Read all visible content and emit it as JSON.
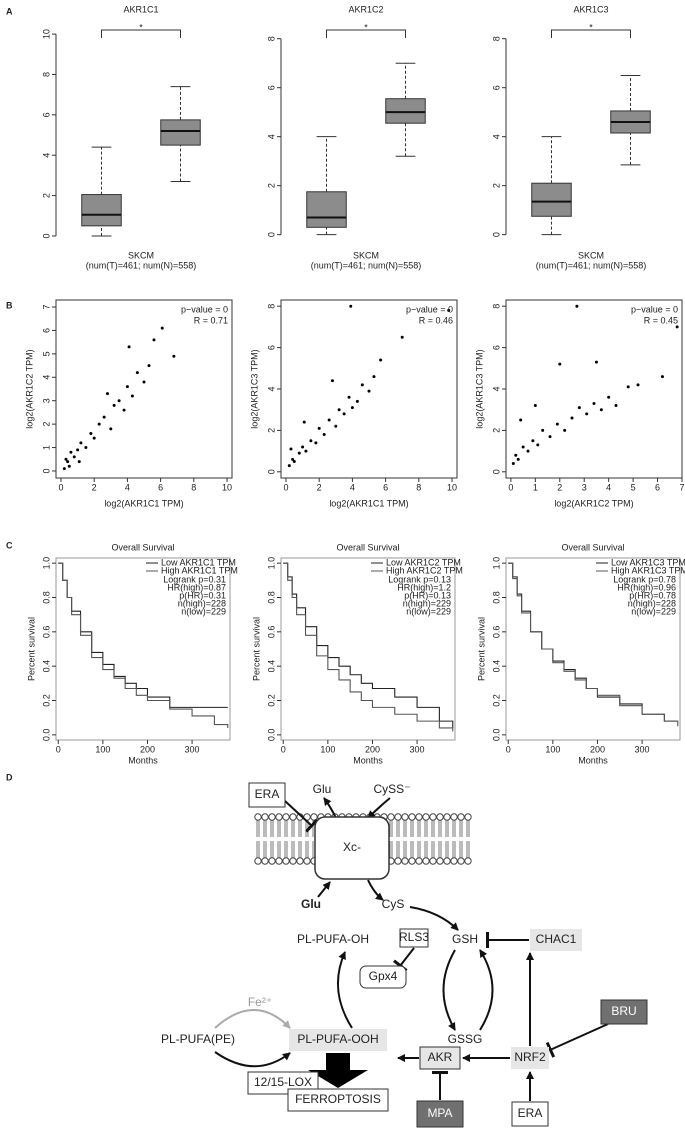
{
  "panel_labels": [
    "A",
    "B",
    "C",
    "D"
  ],
  "chart_data": [
    {
      "type": "box",
      "title": "AKR1C1",
      "xlabel": "SKCM",
      "xsublabel": "(num(T)=461; num(N)=558)",
      "significance": "*",
      "ylim": [
        -0.3,
        10.5
      ],
      "yticks": [
        0,
        2,
        4,
        6,
        8,
        10
      ],
      "color": "#8c8c8c",
      "boxes": [
        {
          "whislo": 0,
          "q1": 0.5,
          "med": 1.05,
          "q3": 2.05,
          "whishi": 4.4
        },
        {
          "whislo": 2.7,
          "q1": 4.5,
          "med": 5.2,
          "q3": 5.75,
          "whishi": 7.4
        }
      ]
    },
    {
      "type": "box",
      "title": "AKR1C2",
      "xlabel": "SKCM",
      "xsublabel": "(num(T)=461; num(N)=558)",
      "significance": "*",
      "ylim": [
        -0.3,
        8.6
      ],
      "yticks": [
        0,
        2,
        4,
        6,
        8
      ],
      "color": "#8c8c8c",
      "boxes": [
        {
          "whislo": 0,
          "q1": 0.3,
          "med": 0.7,
          "q3": 1.75,
          "whishi": 4.0
        },
        {
          "whislo": 3.2,
          "q1": 4.55,
          "med": 5.0,
          "q3": 5.55,
          "whishi": 7.0
        }
      ]
    },
    {
      "type": "box",
      "title": "AKR1C3",
      "xlabel": "SKCM",
      "xsublabel": "(num(T)=461; num(N)=558)",
      "significance": "*",
      "ylim": [
        -0.3,
        8.6
      ],
      "yticks": [
        0,
        2,
        4,
        6,
        8
      ],
      "color": "#8c8c8c",
      "boxes": [
        {
          "whislo": 0,
          "q1": 0.75,
          "med": 1.35,
          "q3": 2.1,
          "whishi": 4.0
        },
        {
          "whislo": 2.85,
          "q1": 4.15,
          "med": 4.6,
          "q3": 5.05,
          "whishi": 6.5
        }
      ]
    },
    {
      "type": "scatter",
      "xlabel": "log2(AKR1C1 TPM)",
      "ylabel": "log2(AKR1C2 TPM)",
      "annotations": [
        "p−value = 0",
        "R = 0.71"
      ],
      "color": "#000000",
      "xlim": [
        -0.3,
        10.3
      ],
      "xticks": [
        0,
        2,
        4,
        6,
        8,
        10
      ],
      "ylim": [
        -0.3,
        7.3
      ],
      "yticks": [
        0,
        1,
        2,
        3,
        4,
        5,
        6,
        7
      ],
      "x": [
        0.2,
        0.4,
        0.5,
        0.8,
        1.0,
        1.2,
        1.5,
        1.8,
        2.0,
        2.3,
        2.6,
        3.0,
        3.2,
        3.5,
        3.8,
        4.0,
        4.3,
        4.6,
        5.0,
        5.3,
        5.6,
        6.1,
        0.3,
        0.6,
        1.1,
        2.8,
        4.1,
        6.8
      ],
      "values": [
        0.1,
        0.4,
        0.2,
        0.6,
        0.9,
        1.2,
        1.0,
        1.6,
        1.4,
        2.0,
        2.3,
        1.8,
        2.8,
        3.0,
        2.6,
        3.6,
        3.2,
        4.2,
        3.8,
        4.5,
        5.6,
        6.1,
        0.5,
        0.8,
        0.4,
        3.3,
        5.3,
        4.9
      ]
    },
    {
      "type": "scatter",
      "xlabel": "log2(AKR1C1 TPM)",
      "ylabel": "log2(AKR1C3 TPM)",
      "annotations": [
        "p−value = 0",
        "R = 0.46"
      ],
      "color": "#000000",
      "xlim": [
        -0.3,
        10.3
      ],
      "xticks": [
        0,
        2,
        4,
        6,
        8,
        10
      ],
      "ylim": [
        -0.3,
        8.3
      ],
      "yticks": [
        0,
        2,
        4,
        6,
        8
      ],
      "x": [
        0.2,
        0.4,
        0.5,
        0.8,
        1.0,
        1.2,
        1.5,
        1.8,
        2.0,
        2.3,
        2.6,
        3.0,
        3.2,
        3.5,
        3.8,
        4.0,
        4.3,
        4.6,
        5.0,
        5.3,
        5.7,
        7.0,
        9.8,
        0.3,
        1.1,
        2.8,
        3.9
      ],
      "values": [
        0.3,
        0.6,
        0.5,
        0.9,
        1.2,
        1.0,
        1.5,
        1.4,
        2.1,
        1.8,
        2.5,
        2.2,
        3.0,
        2.8,
        3.6,
        3.1,
        3.4,
        4.2,
        3.9,
        4.6,
        5.4,
        6.5,
        7.8,
        1.1,
        2.4,
        4.4,
        8.0
      ]
    },
    {
      "type": "scatter",
      "xlabel": "log2(AKR1C2 TPM)",
      "ylabel": "log2(AKR1C3 TPM)",
      "annotations": [
        "p−value = 0",
        "R = 0.45"
      ],
      "color": "#000000",
      "xlim": [
        -0.2,
        7.0
      ],
      "xticks": [
        0,
        1,
        2,
        3,
        4,
        5,
        6,
        7
      ],
      "ylim": [
        -0.3,
        8.3
      ],
      "yticks": [
        0,
        2,
        4,
        6,
        8
      ],
      "x": [
        0.1,
        0.2,
        0.3,
        0.5,
        0.7,
        0.9,
        1.1,
        1.3,
        1.6,
        1.9,
        2.2,
        2.5,
        2.8,
        3.1,
        3.4,
        3.7,
        4.0,
        4.3,
        4.8,
        5.2,
        6.2,
        6.8,
        0.4,
        1.0,
        2.0,
        2.7,
        3.5
      ],
      "values": [
        0.4,
        0.8,
        0.6,
        1.2,
        1.0,
        1.5,
        1.3,
        2.0,
        1.7,
        2.3,
        2.0,
        2.6,
        3.1,
        2.8,
        3.3,
        3.0,
        3.6,
        3.2,
        4.1,
        4.2,
        4.6,
        7.0,
        2.5,
        3.2,
        5.2,
        8.0,
        5.3
      ]
    },
    {
      "type": "km",
      "title": "Overall Survival",
      "xlabel": "Months",
      "ylabel": "Percent survival",
      "xlim": [
        -5,
        385
      ],
      "xticks": [
        0,
        100,
        200,
        300
      ],
      "ylim": [
        -0.03,
        1.03
      ],
      "yticks": [
        {
          "value": 0,
          "label": "0.0"
        },
        0.2,
        0.4,
        0.6,
        0.8,
        {
          "value": 1,
          "label": "1.0"
        }
      ],
      "stats": [
        "Logrank p=0.31",
        "HR(high)=0.87",
        "p(HR)=0.31",
        "n(high)=228",
        "n(low)=229"
      ],
      "series": [
        {
          "name": "Low AKR1C1 TPM",
          "color": "#222222",
          "x": [
            0,
            10,
            20,
            30,
            50,
            75,
            100,
            125,
            150,
            175,
            200,
            250,
            300,
            350,
            380
          ],
          "values": [
            1,
            0.9,
            0.8,
            0.72,
            0.6,
            0.48,
            0.41,
            0.34,
            0.3,
            0.27,
            0.22,
            0.16,
            0.16,
            0.16,
            0.16
          ]
        },
        {
          "name": "High AKR1C1 TPM",
          "color": "#555555",
          "x": [
            0,
            10,
            20,
            30,
            50,
            75,
            100,
            125,
            150,
            175,
            200,
            250,
            300,
            350,
            380
          ],
          "values": [
            1,
            0.9,
            0.8,
            0.7,
            0.58,
            0.45,
            0.38,
            0.33,
            0.27,
            0.23,
            0.2,
            0.15,
            0.11,
            0.06,
            0.04
          ]
        }
      ]
    },
    {
      "type": "km",
      "title": "Overall Survival",
      "xlabel": "Months",
      "ylabel": "Percent survival",
      "xlim": [
        -5,
        385
      ],
      "xticks": [
        0,
        100,
        200,
        300
      ],
      "ylim": [
        -0.03,
        1.03
      ],
      "yticks": [
        {
          "value": 0,
          "label": "0.0"
        },
        0.2,
        0.4,
        0.6,
        0.8,
        {
          "value": 1,
          "label": "1.0"
        }
      ],
      "stats": [
        "Logrank p=0.13",
        "HR(high)=1.2",
        "p(HR)=0.13",
        "n(high)=229",
        "n(low)=229"
      ],
      "series": [
        {
          "name": "Low AKR1C2 TPM",
          "color": "#222222",
          "x": [
            0,
            10,
            20,
            30,
            50,
            75,
            100,
            125,
            150,
            175,
            200,
            250,
            300,
            350,
            380
          ],
          "values": [
            1,
            0.92,
            0.82,
            0.74,
            0.63,
            0.52,
            0.45,
            0.4,
            0.35,
            0.3,
            0.27,
            0.22,
            0.16,
            0.08,
            0.04
          ]
        },
        {
          "name": "High AKR1C2 TPM",
          "color": "#555555",
          "x": [
            0,
            10,
            20,
            30,
            50,
            75,
            100,
            125,
            150,
            175,
            200,
            250,
            300,
            350,
            380
          ],
          "values": [
            1,
            0.9,
            0.8,
            0.7,
            0.58,
            0.46,
            0.38,
            0.32,
            0.25,
            0.2,
            0.16,
            0.12,
            0.08,
            0.04,
            0.02
          ]
        }
      ]
    },
    {
      "type": "km",
      "title": "Overall Survival",
      "xlabel": "Months",
      "ylabel": "Percent survival",
      "xlim": [
        -5,
        385
      ],
      "xticks": [
        0,
        100,
        200,
        300
      ],
      "ylim": [
        -0.03,
        1.03
      ],
      "yticks": [
        {
          "value": 0,
          "label": "0.0"
        },
        0.2,
        0.4,
        0.6,
        0.8,
        {
          "value": 1,
          "label": "1.0"
        }
      ],
      "stats": [
        "Logrank p=0.78",
        "HR(high)=0.96",
        "p(HR)=0.78",
        "n(high)=228",
        "n(low)=229"
      ],
      "series": [
        {
          "name": "Low AKR1C3 TPM",
          "color": "#222222",
          "x": [
            0,
            10,
            20,
            30,
            50,
            75,
            100,
            125,
            150,
            175,
            200,
            250,
            300,
            350,
            380
          ],
          "values": [
            1,
            0.92,
            0.82,
            0.72,
            0.6,
            0.5,
            0.43,
            0.38,
            0.33,
            0.27,
            0.22,
            0.18,
            0.12,
            0.08,
            0.08
          ]
        },
        {
          "name": "High AKR1C3 TPM",
          "color": "#555555",
          "x": [
            0,
            10,
            20,
            30,
            50,
            75,
            100,
            125,
            150,
            175,
            200,
            250,
            300,
            350,
            380
          ],
          "values": [
            1,
            0.91,
            0.81,
            0.71,
            0.6,
            0.5,
            0.42,
            0.37,
            0.32,
            0.27,
            0.23,
            0.17,
            0.12,
            0.08,
            0.05
          ]
        }
      ]
    }
  ],
  "diagram": {
    "nodes": [
      {
        "label": "ERA"
      },
      {
        "label": "Glu"
      },
      {
        "label": "CySS⁻"
      },
      {
        "label": "Xc-"
      },
      {
        "label": "Glu"
      },
      {
        "label": "CyS"
      },
      {
        "label": "PL-PUFA-OH"
      },
      {
        "label": "RLS3"
      },
      {
        "label": "GSH"
      },
      {
        "label": "CHAC1"
      },
      {
        "label": "Gpx4"
      },
      {
        "label": "Fe²⁺"
      },
      {
        "label": "BRU"
      },
      {
        "label": "PL-PUFA(PE)"
      },
      {
        "label": "PL-PUFA-OOH"
      },
      {
        "label": "GSSG"
      },
      {
        "label": "12/15-LOX"
      },
      {
        "label": "AKR"
      },
      {
        "label": "NRF2"
      },
      {
        "label": "FERROPTOSIS"
      },
      {
        "label": "MPA"
      },
      {
        "label": "ERA"
      }
    ]
  }
}
